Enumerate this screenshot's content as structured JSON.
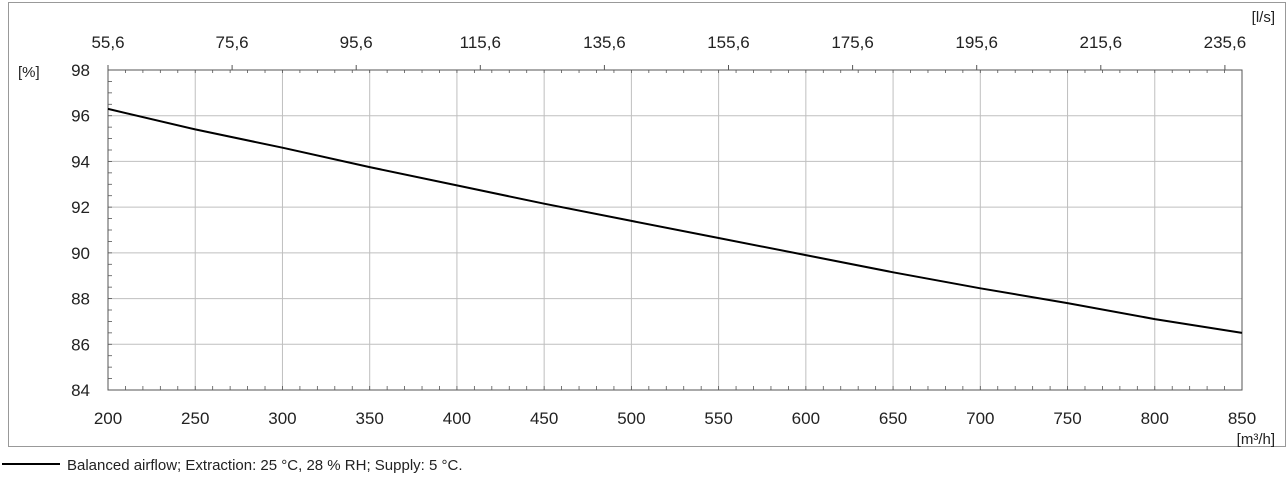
{
  "chart_data": {
    "type": "line",
    "x": [
      200,
      250,
      300,
      350,
      400,
      450,
      500,
      550,
      600,
      650,
      700,
      750,
      800,
      850
    ],
    "series": [
      {
        "name": "Balanced airflow; Extraction: 25 °C, 28 % RH; Supply: 5 °C.",
        "values": [
          96.3,
          95.4,
          94.6,
          93.75,
          92.95,
          92.15,
          91.4,
          90.65,
          89.9,
          89.15,
          88.45,
          87.8,
          87.1,
          86.5
        ]
      }
    ],
    "xlim": [
      200,
      850
    ],
    "ylim": [
      84,
      98
    ],
    "x_ticks": [
      "200",
      "250",
      "300",
      "350",
      "400",
      "450",
      "500",
      "550",
      "600",
      "650",
      "700",
      "750",
      "800",
      "850"
    ],
    "y_ticks": [
      "84",
      "86",
      "88",
      "90",
      "92",
      "94",
      "96",
      "98"
    ],
    "top_axis": {
      "ticks": [
        "55,6",
        "75,6",
        "95,6",
        "115,6",
        "135,6",
        "155,6",
        "175,6",
        "195,6",
        "215,6",
        "235,6"
      ],
      "unit": "[l/s]"
    },
    "xlabel": "[m³/h]",
    "ylabel": "[%]",
    "grid": true,
    "legend": "bottom-left",
    "colors": {
      "line": "#000000",
      "grid": "#bfbfbf",
      "axis": "#555555",
      "frame": "#999999"
    }
  }
}
